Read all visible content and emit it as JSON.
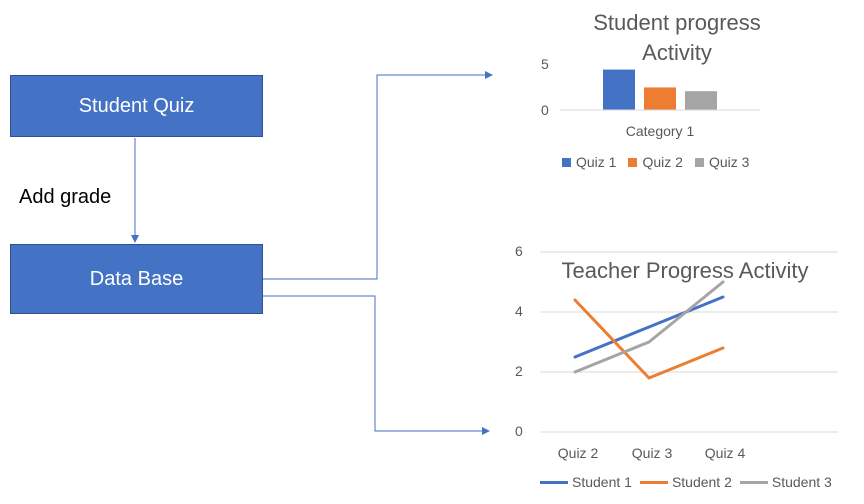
{
  "diagram": {
    "student_quiz_label": "Student Quiz",
    "database_label": "Data Base",
    "edge_label": "Add grade",
    "colors": {
      "box_fill": "#4472C4",
      "connector": "#4472C4"
    }
  },
  "chart_data": [
    {
      "type": "bar",
      "title_line1": "Student progress",
      "title_line2": "Activity",
      "categories": [
        "Category 1"
      ],
      "series": [
        {
          "name": "Quiz 1",
          "values": [
            4.3
          ],
          "color": "#4472C4"
        },
        {
          "name": "Quiz 2",
          "values": [
            2.4
          ],
          "color": "#ED7D31"
        },
        {
          "name": "Quiz 3",
          "values": [
            2.0
          ],
          "color": "#A5A5A5"
        }
      ],
      "yticks": [
        "5",
        "0"
      ],
      "ylim": [
        0,
        5
      ],
      "legend": "bottom",
      "grid": false
    },
    {
      "type": "line",
      "title": "Teacher Progress Activity",
      "categories": [
        "Quiz 2",
        "Quiz 3",
        "Quiz 4"
      ],
      "series": [
        {
          "name": "Student 1",
          "values": [
            2.5,
            3.5,
            4.5
          ],
          "color": "#4472C4"
        },
        {
          "name": "Student 2",
          "values": [
            4.4,
            1.8,
            2.8
          ],
          "color": "#ED7D31"
        },
        {
          "name": "Student 3",
          "values": [
            2.0,
            3.0,
            5.0
          ],
          "color": "#A5A5A5"
        }
      ],
      "yticks": [
        "6",
        "4",
        "2",
        "0"
      ],
      "ylim": [
        0,
        6
      ],
      "legend": "bottom",
      "grid": true
    }
  ]
}
